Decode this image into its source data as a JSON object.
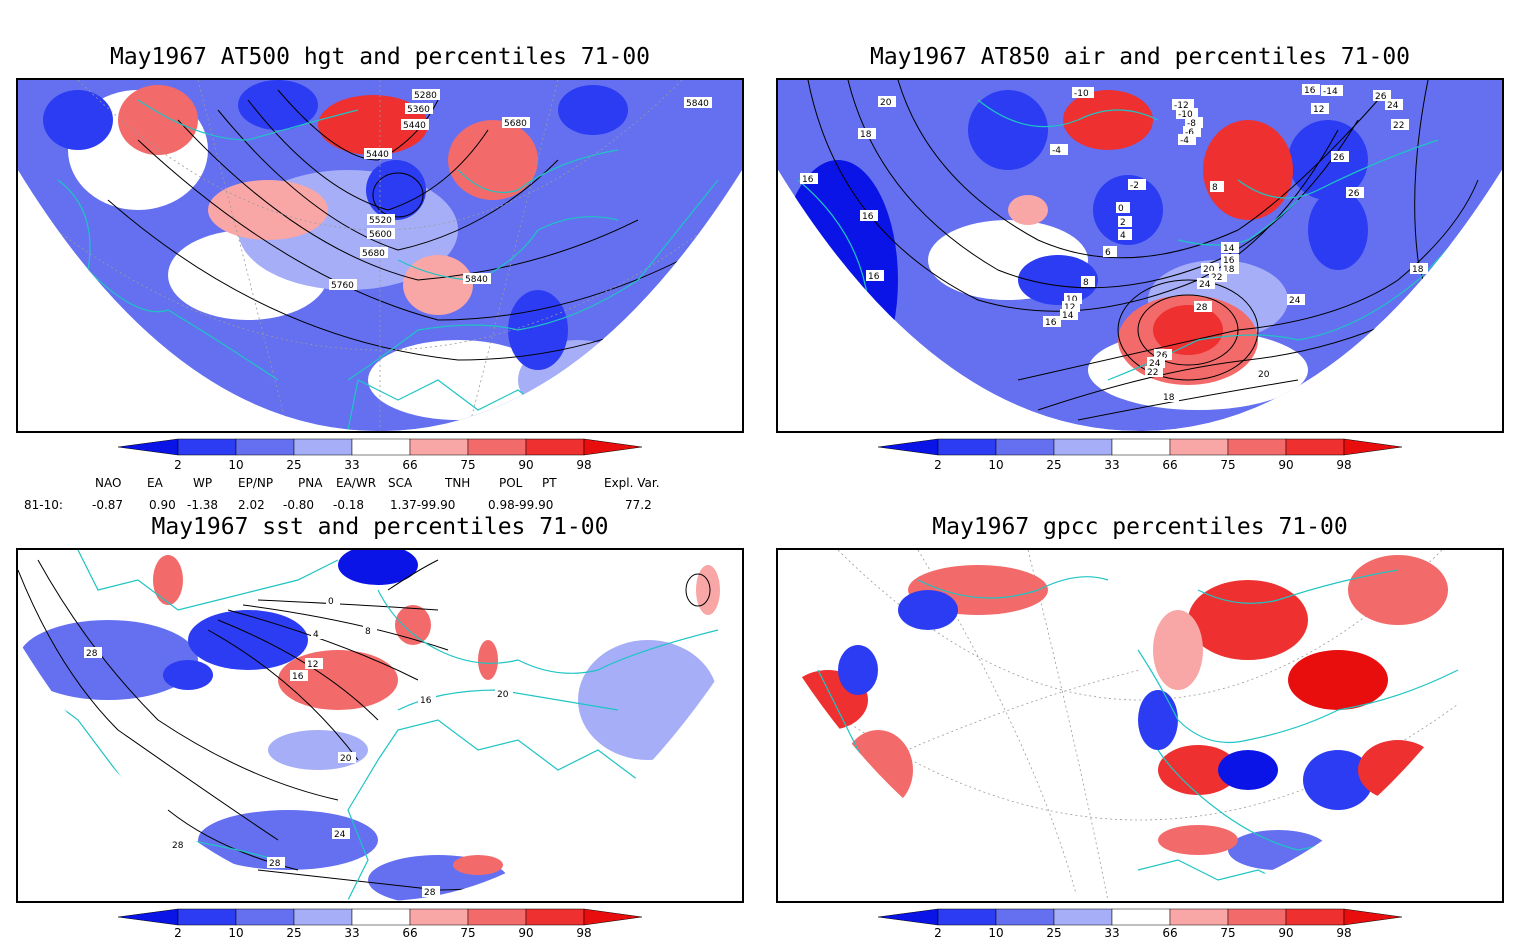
{
  "panels": [
    {
      "title": "May1967 AT500 hgt and percentiles 71-00",
      "contour_labels": [
        "5280",
        "5360",
        "5440",
        "5440",
        "5520",
        "5600",
        "5680",
        "5680",
        "5760",
        "5840",
        "5840"
      ]
    },
    {
      "title": "May1967 AT850 air and percentiles 71-00",
      "contour_labels": [
        "20",
        "18",
        "16",
        "16",
        "16",
        "-10",
        "-4",
        "-2",
        "0",
        "2",
        "4",
        "6",
        "8",
        "10",
        "12",
        "14",
        "16",
        "-12",
        "-10",
        "-8",
        "-6",
        "-4",
        "16",
        "-14",
        "12",
        "26",
        "24",
        "22",
        "26",
        "26",
        "8",
        "14",
        "16",
        "18",
        "20",
        "22",
        "24",
        "28",
        "26",
        "24",
        "24",
        "22",
        "20",
        "18",
        "18"
      ]
    },
    {
      "title": "May1967 sst and percentiles 71-00",
      "contour_labels": [
        "28",
        "0",
        "4",
        "8",
        "12",
        "16",
        "16",
        "20",
        "20",
        "24",
        "28",
        "28",
        "28"
      ]
    },
    {
      "title": "May1967 gpcc percentiles 71-00",
      "contour_labels": []
    }
  ],
  "colorbar": {
    "ticks": [
      "2",
      "10",
      "25",
      "33",
      "66",
      "75",
      "90",
      "98"
    ],
    "colors": {
      "below_2": "#0a14e6",
      "p2_10": "#2b3cf2",
      "p10_25": "#6470f0",
      "p25_33": "#a6aef8",
      "p33_66": "#ffffff",
      "p66_75": "#f9a6a6",
      "p75_90": "#f36a6a",
      "p90_98": "#ee3030",
      "above_98": "#e80e0e"
    }
  },
  "indices": {
    "headers": [
      "NAO",
      "EA",
      "WP",
      "EP/NP",
      "PNA",
      "EA/WR",
      "SCA",
      "TNH",
      "POL",
      "PT",
      "Expl. Var."
    ],
    "row_label": "81-10:",
    "values": [
      "-0.87",
      "0.90",
      "-1.38",
      "2.02",
      "-0.80",
      "-0.18",
      "1.37-99.90",
      "0.98-99.90",
      "77.2"
    ]
  },
  "map_colors": {
    "coast": "#1fc4c4",
    "contour": "#000000",
    "grid": "#9a9a9a"
  }
}
